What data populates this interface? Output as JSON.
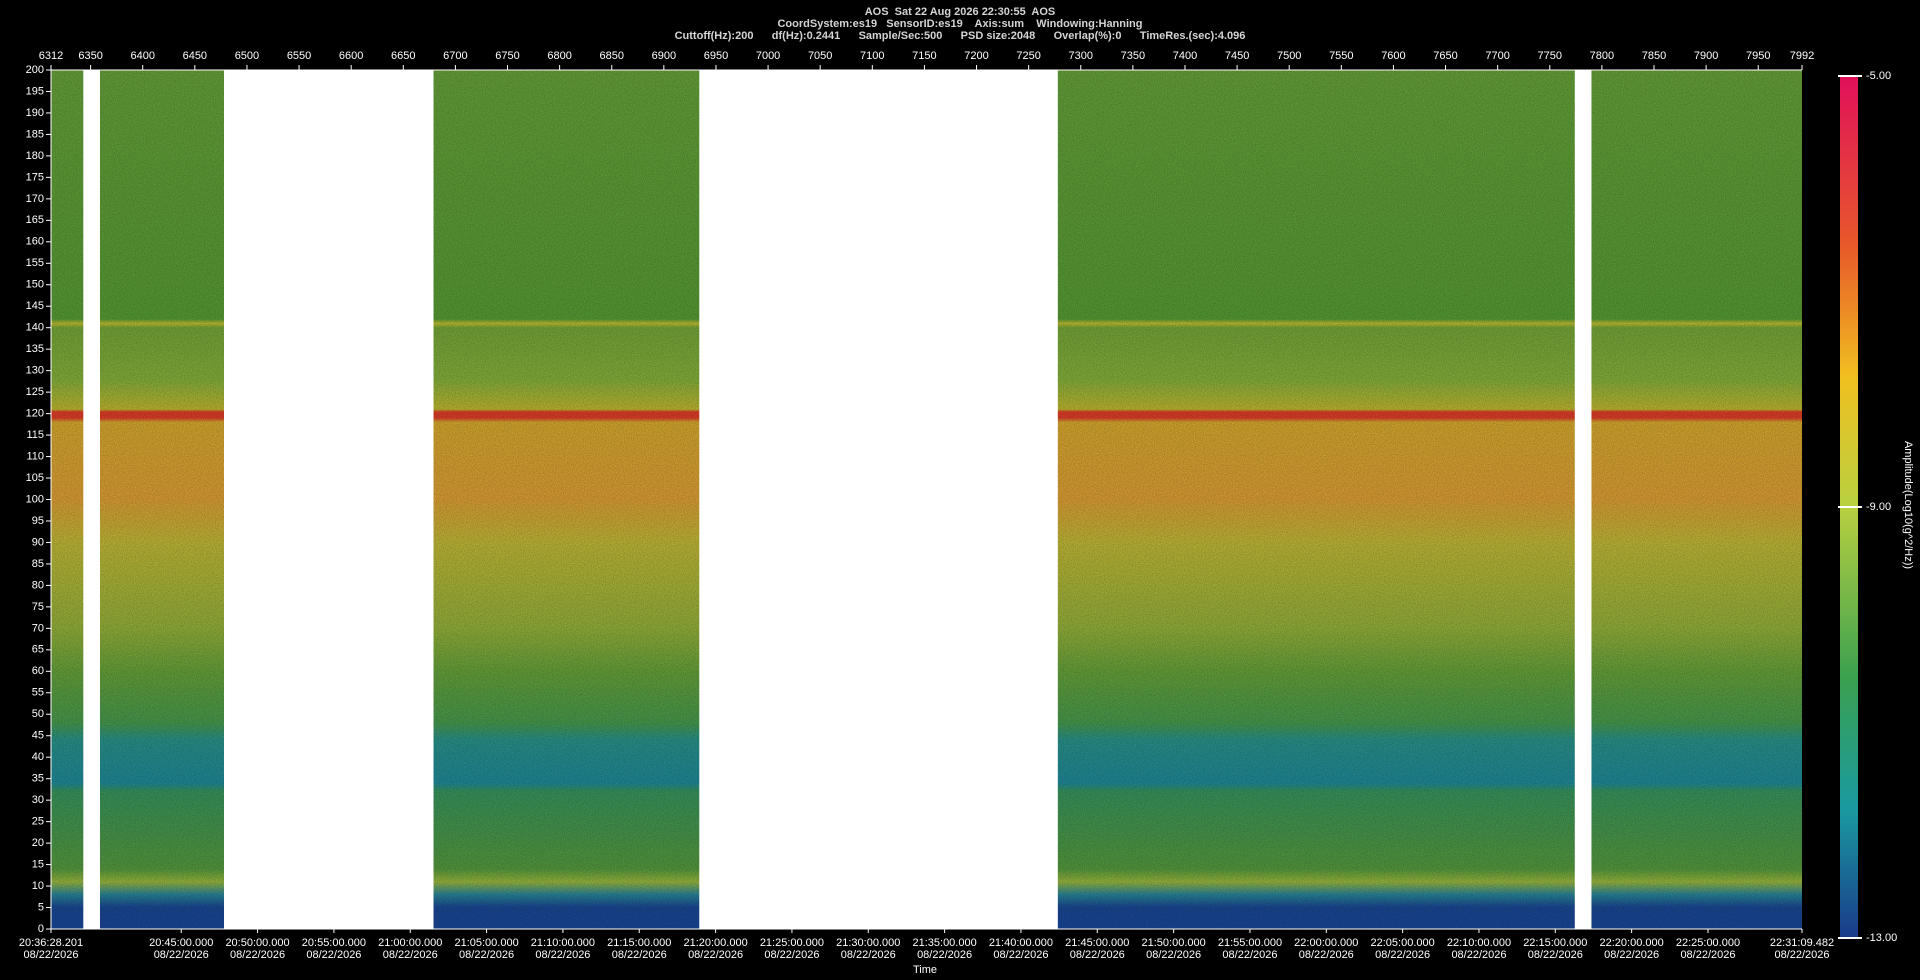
{
  "chart_data": {
    "type": "spectrogram",
    "title_lines": [
      "AOS  Sat 22 Aug 2026 22:30:55  AOS",
      "CoordSystem:es19   SensorID:es19    Axis:sum    Windowing:Hanning",
      "Cuttoff(Hz):200      df(Hz):0.2441      Sample/Sec:500      PSD size:2048      Overlap(%):0      TimeRes.(sec):4.096"
    ],
    "xlim": [
      6312,
      7992
    ],
    "xticks": [
      6312,
      6350,
      6400,
      6450,
      6500,
      6550,
      6600,
      6650,
      6700,
      6750,
      6800,
      6850,
      6900,
      6950,
      7000,
      7050,
      7100,
      7150,
      7200,
      7250,
      7300,
      7350,
      7400,
      7450,
      7500,
      7550,
      7600,
      7650,
      7700,
      7750,
      7800,
      7850,
      7900,
      7950,
      7992
    ],
    "ylim": [
      0,
      200
    ],
    "yticks": [
      0,
      5,
      10,
      15,
      20,
      25,
      30,
      35,
      40,
      45,
      50,
      55,
      60,
      65,
      70,
      75,
      80,
      85,
      90,
      95,
      100,
      105,
      110,
      115,
      120,
      125,
      130,
      135,
      140,
      145,
      150,
      155,
      160,
      165,
      170,
      175,
      180,
      185,
      190,
      195,
      200
    ],
    "gaps": [
      [
        6343,
        6359
      ],
      [
        6478,
        6679
      ],
      [
        6934,
        7278
      ],
      [
        7774,
        7790
      ]
    ],
    "time_ticks": [
      {
        "time": "20:36:28.201",
        "date": "08/22/2026"
      },
      {
        "time": "20:45:00.000",
        "date": "08/22/2026"
      },
      {
        "time": "20:50:00.000",
        "date": "08/22/2026"
      },
      {
        "time": "20:55:00.000",
        "date": "08/22/2026"
      },
      {
        "time": "21:00:00.000",
        "date": "08/22/2026"
      },
      {
        "time": "21:05:00.000",
        "date": "08/22/2026"
      },
      {
        "time": "21:10:00.000",
        "date": "08/22/2026"
      },
      {
        "time": "21:15:00.000",
        "date": "08/22/2026"
      },
      {
        "time": "21:20:00.000",
        "date": "08/22/2026"
      },
      {
        "time": "21:25:00.000",
        "date": "08/22/2026"
      },
      {
        "time": "21:30:00.000",
        "date": "08/22/2026"
      },
      {
        "time": "21:35:00.000",
        "date": "08/22/2026"
      },
      {
        "time": "21:40:00.000",
        "date": "08/22/2026"
      },
      {
        "time": "21:45:00.000",
        "date": "08/22/2026"
      },
      {
        "time": "21:50:00.000",
        "date": "08/22/2026"
      },
      {
        "time": "21:55:00.000",
        "date": "08/22/2026"
      },
      {
        "time": "22:00:00.000",
        "date": "08/22/2026"
      },
      {
        "time": "22:05:00.000",
        "date": "08/22/2026"
      },
      {
        "time": "22:10:00.000",
        "date": "08/22/2026"
      },
      {
        "time": "22:15:00.000",
        "date": "08/22/2026"
      },
      {
        "time": "22:20:00.000",
        "date": "08/22/2026"
      },
      {
        "time": "22:25:00.000",
        "date": "08/22/2026"
      },
      {
        "time": "22:31:09.482",
        "date": "08/22/2026"
      }
    ],
    "xlabel": "Time",
    "colorbar": {
      "label": "Amplitude(Log10(g^2/Hz))",
      "lim": [
        -13,
        -5
      ],
      "ticks": [
        {
          "value": -5,
          "label": "-5.00"
        },
        {
          "value": -9,
          "label": "-9.00"
        },
        {
          "value": -13,
          "label": "-13.00"
        }
      ]
    }
  }
}
